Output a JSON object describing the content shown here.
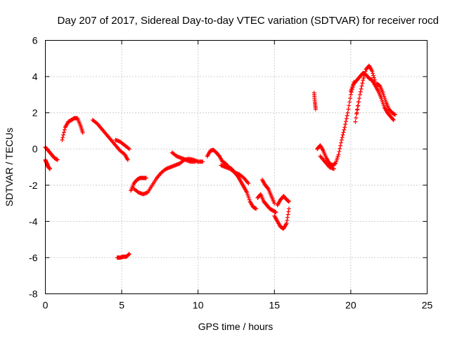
{
  "chart_data": {
    "type": "scatter",
    "title": "Day 207 of 2017, Sidereal Day-to-day VTEC variation (SDTVAR) for receiver rocd",
    "xlabel": "GPS time / hours",
    "ylabel": "SDTVAR / TECUs",
    "xlim": [
      0,
      25
    ],
    "ylim": [
      -8,
      6
    ],
    "xticks": [
      0,
      5,
      10,
      15,
      20,
      25
    ],
    "yticks": [
      -8,
      -6,
      -4,
      -2,
      0,
      2,
      4,
      6
    ],
    "grid": true,
    "marker": "+",
    "color": "#ff0000",
    "segments": [
      {
        "x": [
          0.0,
          0.2,
          0.4,
          0.6,
          0.8
        ],
        "y": [
          0.1,
          -0.1,
          -0.3,
          -0.5,
          -0.6
        ]
      },
      {
        "x": [
          0.0,
          0.1,
          0.2,
          0.3
        ],
        "y": [
          -0.6,
          -0.8,
          -1.0,
          -1.1
        ]
      },
      {
        "x": [
          1.1,
          1.3,
          1.5,
          1.7,
          1.9,
          2.1,
          2.3,
          2.45
        ],
        "y": [
          0.5,
          1.2,
          1.5,
          1.6,
          1.7,
          1.7,
          1.3,
          0.9
        ]
      },
      {
        "x": [
          3.1,
          3.4,
          3.7,
          4.0,
          4.3,
          4.6,
          4.9,
          5.2,
          5.4
        ],
        "y": [
          1.6,
          1.4,
          1.1,
          0.8,
          0.5,
          0.2,
          -0.1,
          -0.3,
          -0.6
        ]
      },
      {
        "x": [
          4.6,
          4.9,
          5.2,
          5.5
        ],
        "y": [
          0.5,
          0.4,
          0.2,
          0.0
        ]
      },
      {
        "x": [
          4.7,
          4.9,
          5.1,
          5.3,
          5.5
        ],
        "y": [
          -6.0,
          -6.0,
          -5.95,
          -5.95,
          -5.8
        ]
      },
      {
        "x": [
          5.6,
          5.8,
          6.0,
          6.2,
          6.4,
          6.6
        ],
        "y": [
          -2.3,
          -1.9,
          -1.7,
          -1.6,
          -1.6,
          -1.6
        ]
      },
      {
        "x": [
          5.8,
          6.1,
          6.4,
          6.7,
          7.0,
          7.3,
          7.6,
          7.9,
          8.2,
          8.5,
          8.8,
          9.1,
          9.4,
          9.7,
          10.0,
          10.3
        ],
        "y": [
          -2.2,
          -2.4,
          -2.5,
          -2.4,
          -2.0,
          -1.6,
          -1.3,
          -1.1,
          -1.0,
          -0.9,
          -0.8,
          -0.6,
          -0.55,
          -0.6,
          -0.7,
          -0.7
        ]
      },
      {
        "x": [
          8.3,
          8.6,
          8.9,
          9.2,
          9.5,
          9.8
        ],
        "y": [
          -0.2,
          -0.4,
          -0.5,
          -0.6,
          -0.7,
          -0.7
        ]
      },
      {
        "x": [
          10.6,
          10.8,
          11.0,
          11.2,
          11.4,
          11.6,
          11.8,
          12.0,
          12.2,
          12.4,
          12.6,
          12.8,
          13.0,
          13.2,
          13.4,
          13.6,
          13.8
        ],
        "y": [
          -0.4,
          -0.1,
          -0.05,
          -0.2,
          -0.4,
          -0.7,
          -0.8,
          -1.0,
          -1.1,
          -1.3,
          -1.5,
          -1.8,
          -2.1,
          -2.4,
          -2.9,
          -3.2,
          -3.3
        ]
      },
      {
        "x": [
          11.5,
          11.8,
          12.1,
          12.4,
          12.7,
          13.0,
          13.3
        ],
        "y": [
          -0.9,
          -1.0,
          -1.1,
          -1.3,
          -1.4,
          -1.6,
          -1.9
        ]
      },
      {
        "x": [
          13.9,
          14.1,
          14.3,
          14.5,
          14.7,
          14.9,
          15.1
        ],
        "y": [
          -2.7,
          -2.5,
          -2.9,
          -3.1,
          -3.3,
          -3.4,
          -3.5
        ]
      },
      {
        "x": [
          14.2,
          14.4,
          14.6,
          14.8,
          15.0
        ],
        "y": [
          -1.7,
          -2.0,
          -2.2,
          -2.6,
          -3.0
        ]
      },
      {
        "x": [
          15.0,
          15.2,
          15.4,
          15.6,
          15.8,
          15.95
        ],
        "y": [
          -3.7,
          -4.0,
          -4.3,
          -4.4,
          -4.1,
          -3.3
        ]
      },
      {
        "x": [
          15.2,
          15.4,
          15.6,
          15.8,
          15.95
        ],
        "y": [
          -3.1,
          -2.8,
          -2.6,
          -2.8,
          -2.9
        ]
      },
      {
        "x": [
          17.6,
          17.65,
          17.7
        ],
        "y": [
          3.1,
          2.6,
          2.2
        ]
      },
      {
        "x": [
          17.8,
          18.0,
          18.2,
          18.4,
          18.6,
          18.8,
          19.0,
          19.2,
          19.4,
          19.6,
          19.8,
          20.0,
          20.2
        ],
        "y": [
          0.0,
          0.2,
          -0.1,
          -0.5,
          -0.8,
          -0.9,
          -0.8,
          -0.3,
          0.5,
          1.2,
          2.0,
          3.0,
          3.7
        ]
      },
      {
        "x": [
          18.0,
          18.3,
          18.6,
          18.9
        ],
        "y": [
          -0.4,
          -0.7,
          -1.0,
          -1.1
        ]
      },
      {
        "x": [
          20.0,
          20.2,
          20.4,
          20.6,
          20.8,
          21.0,
          21.2,
          21.4,
          21.6,
          21.8,
          22.0,
          22.2,
          22.4,
          22.6,
          22.8
        ],
        "y": [
          3.2,
          3.6,
          3.8,
          4.0,
          4.2,
          4.1,
          3.9,
          3.8,
          3.5,
          3.2,
          2.8,
          2.3,
          2.0,
          1.8,
          1.6
        ]
      },
      {
        "x": [
          20.4,
          20.6,
          20.8,
          21.0,
          21.2,
          21.4,
          21.6
        ],
        "y": [
          2.0,
          3.0,
          3.8,
          4.4,
          4.6,
          4.3,
          3.7
        ]
      },
      {
        "x": [
          20.3,
          20.5
        ],
        "y": [
          1.5,
          2.6
        ]
      },
      {
        "x": [
          21.7,
          21.9,
          22.1,
          22.3,
          22.5,
          22.7,
          22.9
        ],
        "y": [
          3.6,
          3.5,
          3.1,
          2.6,
          2.2,
          2.0,
          1.9
        ]
      }
    ]
  }
}
